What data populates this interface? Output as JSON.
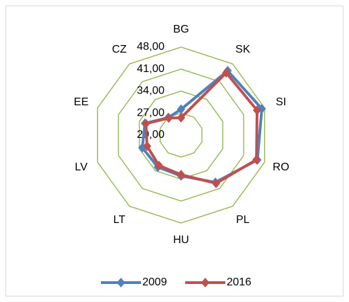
{
  "chart_data": {
    "type": "radar",
    "categories": [
      "BG",
      "SK",
      "SI",
      "RO",
      "PL",
      "HU",
      "LT",
      "LV",
      "EE",
      "CZ"
    ],
    "series": [
      {
        "name": "2009",
        "color": "#4f81bd",
        "values": [
          28.2,
          45.3,
          47.1,
          45.6,
          38.6,
          33.0,
          32.6,
          33.0,
          32.1,
          26.9
        ]
      },
      {
        "name": "2016",
        "color": "#c0504d",
        "values": [
          25.5,
          44.5,
          45.5,
          45.3,
          39.0,
          32.6,
          32.0,
          31.4,
          31.8,
          26.7
        ]
      }
    ],
    "rlim": [
      20,
      48
    ],
    "rticks": [
      {
        "value": 20,
        "label": "20,00"
      },
      {
        "value": 27,
        "label": "27,00"
      },
      {
        "value": 34,
        "label": "34,00"
      },
      {
        "value": 41,
        "label": "41,00"
      },
      {
        "value": 48,
        "label": "48,00"
      }
    ],
    "grid_color": "#9bbb59",
    "legend": "bottom"
  }
}
